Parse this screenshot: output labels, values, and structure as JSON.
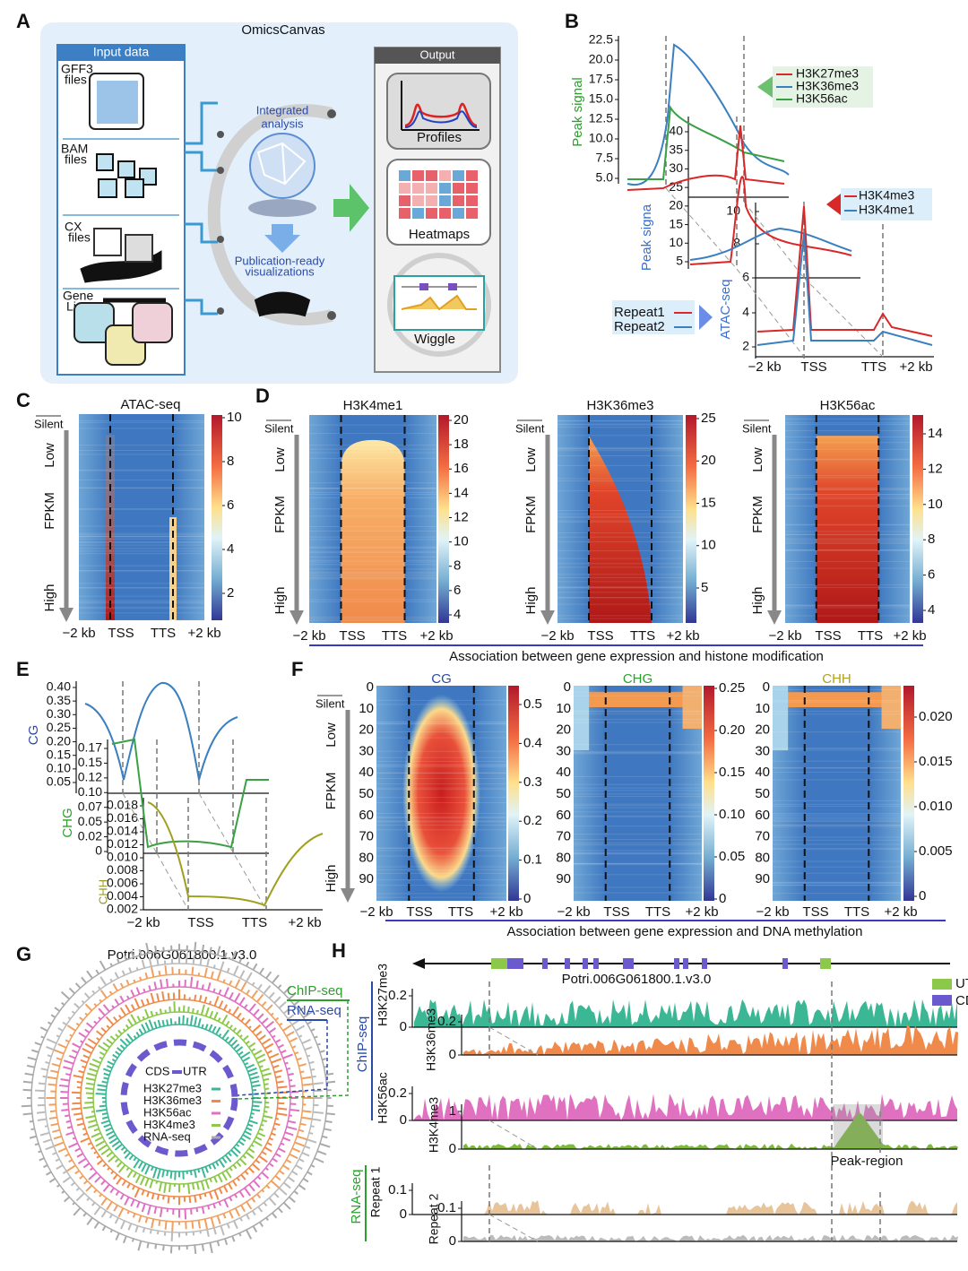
{
  "panel_labels": [
    "A",
    "B",
    "C",
    "D",
    "E",
    "F",
    "G",
    "H"
  ],
  "A": {
    "title": "OmicsCanvas",
    "input_title": "Input data",
    "inputs": [
      [
        "GFF3",
        "files"
      ],
      [
        "BAM",
        "files"
      ],
      [
        "CX",
        "files"
      ],
      [
        "Gene",
        "List"
      ]
    ],
    "center": [
      [
        "Integrated",
        "analysis"
      ],
      [
        "Publication-ready",
        "visualizations"
      ]
    ],
    "output_title": "Output",
    "outputs": [
      "Profiles",
      "Heatmaps",
      "Wiggle"
    ]
  },
  "B": {
    "legend_top": [
      "H3K27me3",
      "H3K36me3",
      "H3K56ac"
    ],
    "legend_mid": [
      "H3K4me3",
      "H3K4me1"
    ],
    "legend_bottom": [
      "Repeat1",
      "Repeat2"
    ],
    "axis1": {
      "label": "Peak signal",
      "ticks": [
        "22.5",
        "20.0",
        "17.5",
        "15.0",
        "12.5",
        "10.0",
        "7.5",
        "5.0"
      ]
    },
    "axis2": {
      "label": "Peak signa",
      "ticks": [
        "40",
        "35",
        "30",
        "25",
        "20",
        "15",
        "10",
        "5"
      ]
    },
    "axis3": {
      "label": "ATAC-seq",
      "ticks": [
        "10",
        "8",
        "6",
        "4",
        "2"
      ]
    },
    "xticks": [
      "−2 kb",
      "TSS",
      "TTS",
      "+2 kb"
    ]
  },
  "C": {
    "title": "ATAC-seq",
    "rows": [
      "Silent",
      "Low",
      "FPKM",
      "High"
    ],
    "xticks": [
      "−2 kb",
      "TSS",
      "TTS",
      "+2 kb"
    ],
    "colorbar": [
      "10",
      "8",
      "6",
      "4",
      "2"
    ]
  },
  "D": {
    "heatmaps": [
      {
        "title": "H3K4me1",
        "colorbar": [
          "20",
          "18",
          "16",
          "14",
          "12",
          "10",
          "8",
          "6",
          "4"
        ]
      },
      {
        "title": "H3K36me3",
        "colorbar": [
          "25",
          "20",
          "15",
          "10",
          "5"
        ]
      },
      {
        "title": "H3K56ac",
        "colorbar": [
          "14",
          "12",
          "10",
          "8",
          "6",
          "4"
        ]
      }
    ],
    "rows": [
      "Silent",
      "Low",
      "FPKM",
      "High"
    ],
    "xticks": [
      "−2 kb",
      "TSS",
      "TTS",
      "+2 kb"
    ],
    "caption": "Association between gene expression and histone modification"
  },
  "E": {
    "CG": {
      "label": "CG",
      "ticks": [
        "0.40",
        "0.35",
        "0.30",
        "0.25",
        "0.20",
        "0.15",
        "0.10",
        "0.05"
      ]
    },
    "CHG": {
      "label": "CHG",
      "ticks": [
        "0.17",
        "0.15",
        "0.12",
        "0.10",
        "0.07",
        "0.05",
        "0.02",
        "0"
      ]
    },
    "CHH": {
      "label": "CHH",
      "ticks": [
        "0.018",
        "0.016",
        "0.014",
        "0.012",
        "0.010",
        "0.008",
        "0.006",
        "0.004",
        "0.002"
      ]
    },
    "xticks": [
      "−2 kb",
      "TSS",
      "TTS",
      "+2 kb"
    ]
  },
  "F": {
    "heatmaps": [
      {
        "title": "CG",
        "colorbar": [
          "0.5",
          "0.4",
          "0.3",
          "0.2",
          "0.1",
          "0"
        ]
      },
      {
        "title": "CHG",
        "colorbar": [
          "0.25",
          "0.20",
          "0.15",
          "0.10",
          "0.05",
          "0"
        ]
      },
      {
        "title": "CHH",
        "colorbar": [
          "0.020",
          "0.015",
          "0.010",
          "0.005",
          "0"
        ]
      }
    ],
    "yticks": [
      "0",
      "10",
      "20",
      "30",
      "40",
      "50",
      "60",
      "70",
      "80",
      "90"
    ],
    "rows": [
      "Silent",
      "Low",
      "FPKM",
      "High"
    ],
    "xticks": [
      "−2 kb",
      "TSS",
      "TTS",
      "+2 kb"
    ],
    "caption": "Association between gene expression and DNA methylation"
  },
  "G": {
    "title": "Potri.006G061800.1.v3.0",
    "tracks_out": [
      "ChIP-seq",
      "RNA-seq"
    ],
    "legend_head": [
      "CDS",
      "UTR"
    ],
    "legend": [
      "H3K27me3",
      "H3K36me3",
      "H3K56ac",
      "H3K4me3",
      "RNA-seq"
    ]
  },
  "H": {
    "gene": "Potri.006G061800.1.v3.0",
    "legend": [
      "UTR",
      "CDS"
    ],
    "groups": [
      "ChIP-seq",
      "RNA-seq"
    ],
    "tracks": [
      {
        "name": "H3K27me3",
        "ticks": [
          "0.2",
          "0"
        ]
      },
      {
        "name": "H3K36me3",
        "ticks": [
          "0.2",
          "0"
        ]
      },
      {
        "name": "H3K56ac",
        "ticks": [
          "0.2",
          "0"
        ]
      },
      {
        "name": "H3K4me3",
        "ticks": [
          "1",
          "0"
        ]
      },
      {
        "name": "Repeat 1",
        "ticks": [
          "0.1",
          "0"
        ]
      },
      {
        "name": "Repeat 2",
        "ticks": [
          "0.1",
          "0"
        ]
      }
    ],
    "annotation": "Peak-region"
  }
}
